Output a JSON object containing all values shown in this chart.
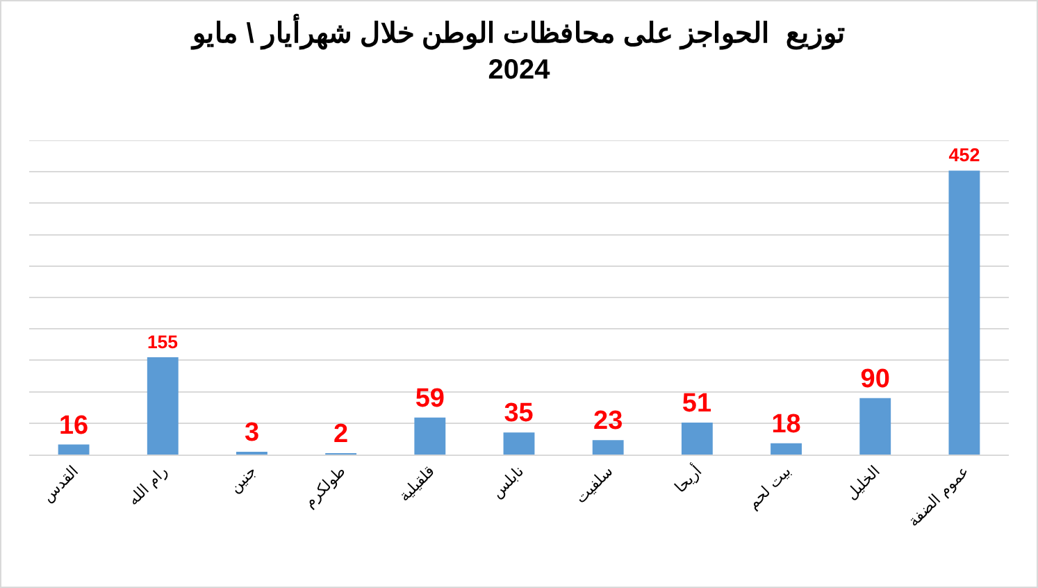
{
  "chart_data": {
    "type": "bar",
    "title": "توزيع  الحواجز على محافظات الوطن خلال شهرأيار \\ مايو\n2024",
    "categories": [
      "القدس",
      "رام الله",
      "جنين",
      "طولكرم",
      "قلقيلية",
      "نابلس",
      "سلفيت",
      "أريحا",
      "بيت لحم",
      "الخليل",
      "عموم الضفة"
    ],
    "values": [
      16,
      155,
      3,
      2,
      59,
      35,
      23,
      51,
      18,
      90,
      452
    ],
    "color": "#5b9bd5",
    "ylim": [
      0,
      500
    ],
    "yticks": [
      {
        "value": 0,
        "label": null
      },
      {
        "value": 50,
        "label": null
      },
      {
        "value": 100,
        "label": null
      },
      {
        "value": 150,
        "label": null
      },
      {
        "value": 200,
        "label": null
      },
      {
        "value": 250,
        "label": null
      },
      {
        "value": 300,
        "label": null
      },
      {
        "value": 350,
        "label": null
      },
      {
        "value": 400,
        "label": null
      },
      {
        "value": 450,
        "label": null
      },
      {
        "value": 500,
        "label": null
      }
    ],
    "grid": "y",
    "data_labels": true,
    "tick_labels": "x"
  }
}
